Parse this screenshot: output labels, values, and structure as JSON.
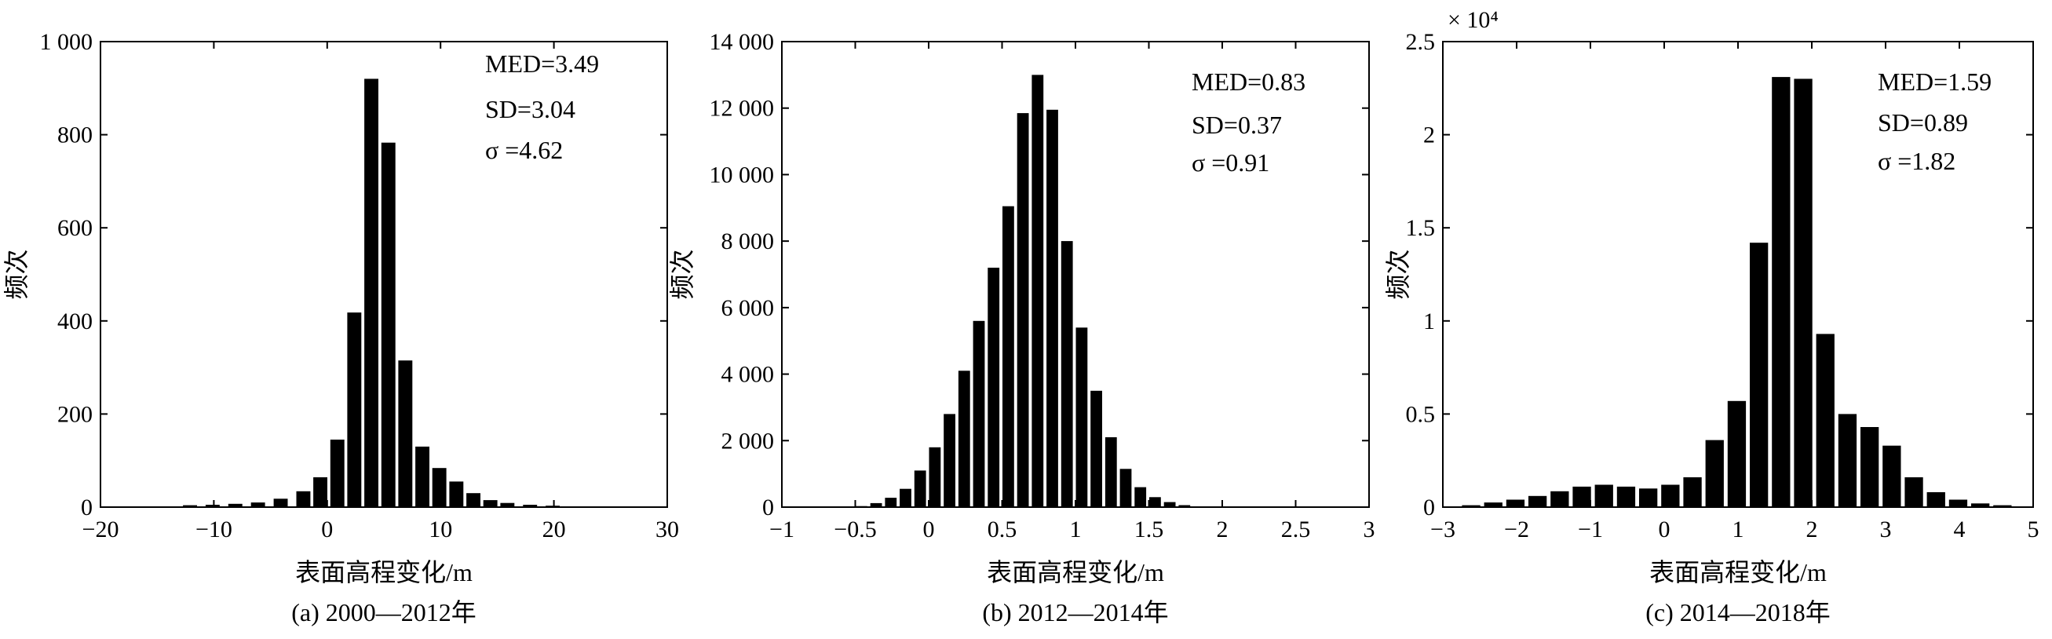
{
  "chart_data": [
    {
      "type": "bar",
      "caption": "(a) 2000—2012年",
      "xlabel": "表面高程变化/m",
      "ylabel": "频次",
      "xlim": [
        -20,
        30
      ],
      "ylim": [
        0,
        1000
      ],
      "xticks": [
        "−20",
        "−10",
        "0",
        "10",
        "20",
        "30"
      ],
      "xtick_values": [
        -20,
        -10,
        0,
        10,
        20,
        30
      ],
      "yticks": [
        "0",
        "200",
        "400",
        "600",
        "800",
        "1 000"
      ],
      "ytick_values": [
        0,
        200,
        400,
        600,
        800,
        1000
      ],
      "annotations": [
        "MED=3.49",
        "SD=3.04",
        " σ =4.62"
      ],
      "bins": [
        {
          "x": -12,
          "y": 4
        },
        {
          "x": -10,
          "y": 5
        },
        {
          "x": -8,
          "y": 7
        },
        {
          "x": -6,
          "y": 10
        },
        {
          "x": -4,
          "y": 18
        },
        {
          "x": -2,
          "y": 34
        },
        {
          "x": -0.5,
          "y": 64
        },
        {
          "x": 1,
          "y": 145
        },
        {
          "x": 2.5,
          "y": 418
        },
        {
          "x": 4,
          "y": 920
        },
        {
          "x": 5.5,
          "y": 783
        },
        {
          "x": 7,
          "y": 315
        },
        {
          "x": 8.5,
          "y": 130
        },
        {
          "x": 10,
          "y": 84
        },
        {
          "x": 11.5,
          "y": 55
        },
        {
          "x": 13,
          "y": 30
        },
        {
          "x": 14.5,
          "y": 15
        },
        {
          "x": 16,
          "y": 9
        },
        {
          "x": 18,
          "y": 5
        },
        {
          "x": 20,
          "y": 3
        }
      ]
    },
    {
      "type": "bar",
      "caption": "(b) 2012—2014年",
      "xlabel": "表面高程变化/m",
      "ylabel": "频次",
      "xlim": [
        -1,
        3
      ],
      "ylim": [
        0,
        14000
      ],
      "xticks": [
        "−1",
        "−0.5",
        "0",
        "0.5",
        "1",
        "1.5",
        "2",
        "2.5",
        "3"
      ],
      "xtick_values": [
        -1,
        -0.5,
        0,
        0.5,
        1,
        1.5,
        2,
        2.5,
        3
      ],
      "yticks": [
        "0",
        "2 000",
        "4 000",
        "6 000",
        "8 000",
        "10 000",
        "12 000",
        "14 000"
      ],
      "ytick_values": [
        0,
        2000,
        4000,
        6000,
        8000,
        10000,
        12000,
        14000
      ],
      "annotations": [
        "MED=0.83",
        "SD=0.37",
        " σ =0.91"
      ],
      "bins": [
        {
          "x": -0.45,
          "y": 30
        },
        {
          "x": -0.35,
          "y": 120
        },
        {
          "x": -0.25,
          "y": 280
        },
        {
          "x": -0.15,
          "y": 550
        },
        {
          "x": -0.05,
          "y": 1100
        },
        {
          "x": 0.05,
          "y": 1800
        },
        {
          "x": 0.15,
          "y": 2800
        },
        {
          "x": 0.25,
          "y": 4100
        },
        {
          "x": 0.35,
          "y": 5600
        },
        {
          "x": 0.45,
          "y": 7200
        },
        {
          "x": 0.55,
          "y": 9050
        },
        {
          "x": 0.65,
          "y": 11850
        },
        {
          "x": 0.75,
          "y": 13000
        },
        {
          "x": 0.85,
          "y": 11950
        },
        {
          "x": 0.95,
          "y": 8000
        },
        {
          "x": 1.05,
          "y": 5400
        },
        {
          "x": 1.15,
          "y": 3500
        },
        {
          "x": 1.25,
          "y": 2100
        },
        {
          "x": 1.35,
          "y": 1150
        },
        {
          "x": 1.45,
          "y": 600
        },
        {
          "x": 1.55,
          "y": 300
        },
        {
          "x": 1.65,
          "y": 150
        },
        {
          "x": 1.75,
          "y": 60
        },
        {
          "x": 1.85,
          "y": 20
        }
      ]
    },
    {
      "type": "bar",
      "caption": "(c) 2014—2018年",
      "xlabel": "表面高程变化/m",
      "ylabel": "频次",
      "xlim": [
        -3,
        5
      ],
      "ylim": [
        0,
        2.5
      ],
      "y_multiplier": "× 10⁴",
      "xticks": [
        "−3",
        "−2",
        "−1",
        "0",
        "1",
        "2",
        "3",
        "4",
        "5"
      ],
      "xtick_values": [
        -3,
        -2,
        -1,
        0,
        1,
        2,
        3,
        4,
        5
      ],
      "yticks": [
        "0",
        "0.5",
        "1",
        "1.5",
        "2",
        "2.5"
      ],
      "ytick_values": [
        0,
        0.5,
        1,
        1.5,
        2,
        2.5
      ],
      "annotations": [
        "MED=1.59",
        "SD=0.89",
        " σ =1.82"
      ],
      "bins": [
        {
          "x": -2.6,
          "y": 0.01
        },
        {
          "x": -2.3,
          "y": 0.025
        },
        {
          "x": -2.0,
          "y": 0.04
        },
        {
          "x": -1.7,
          "y": 0.06
        },
        {
          "x": -1.4,
          "y": 0.085
        },
        {
          "x": -1.1,
          "y": 0.11
        },
        {
          "x": -0.8,
          "y": 0.12
        },
        {
          "x": -0.5,
          "y": 0.11
        },
        {
          "x": -0.2,
          "y": 0.1
        },
        {
          "x": 0.1,
          "y": 0.12
        },
        {
          "x": 0.4,
          "y": 0.16
        },
        {
          "x": 0.7,
          "y": 0.36
        },
        {
          "x": 1.0,
          "y": 0.57
        },
        {
          "x": 1.3,
          "y": 1.42
        },
        {
          "x": 1.6,
          "y": 2.31
        },
        {
          "x": 1.9,
          "y": 2.3
        },
        {
          "x": 2.2,
          "y": 0.93
        },
        {
          "x": 2.5,
          "y": 0.5
        },
        {
          "x": 2.8,
          "y": 0.43
        },
        {
          "x": 3.1,
          "y": 0.33
        },
        {
          "x": 3.4,
          "y": 0.16
        },
        {
          "x": 3.7,
          "y": 0.08
        },
        {
          "x": 4.0,
          "y": 0.04
        },
        {
          "x": 4.3,
          "y": 0.02
        },
        {
          "x": 4.6,
          "y": 0.01
        }
      ]
    }
  ]
}
